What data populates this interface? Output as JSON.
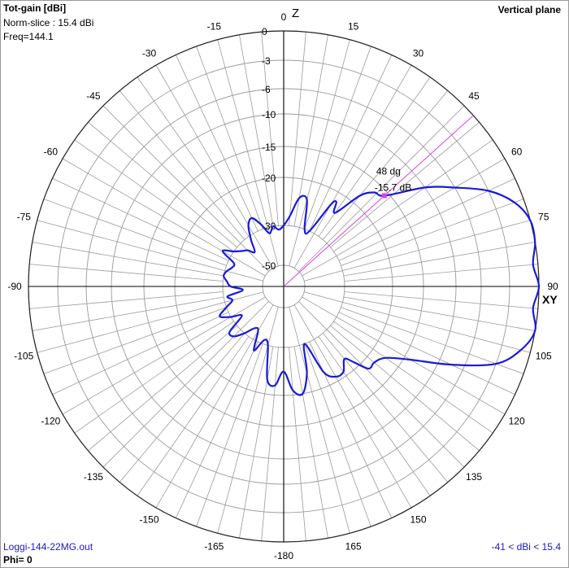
{
  "header": {
    "title": "Tot-gain [dBi]",
    "norm_slice": "Norm-slice : 15.4 dBi",
    "freq": "Freq=144.1",
    "plane": "Vertical plane"
  },
  "footer": {
    "filename": "Loggi-144-22MG.out",
    "phi": "Phi= 0",
    "range": "-41 < dBi < 15.4"
  },
  "axis_labels": {
    "z": "Z",
    "xy": "XY"
  },
  "colors": {
    "grid": "#9b9b9b",
    "axis": "#000000",
    "pattern": "#1a1ad8",
    "marker": "#e040e0"
  },
  "chart_data": {
    "type": "polar",
    "angle_unit": "deg",
    "angle_ticks": [
      "0",
      "15",
      "30",
      "45",
      "60",
      "75",
      "90",
      "105",
      "120",
      "135",
      "150",
      "165",
      "-180",
      "-165",
      "-150",
      "-135",
      "-120",
      "-105",
      "-90",
      "-75",
      "-60",
      "-45",
      "-30",
      "-15"
    ],
    "ring_labels": [
      "0",
      "-3",
      "-6",
      "-10",
      "-15",
      "-20",
      "-30",
      "-50"
    ],
    "marker": {
      "angle": 48,
      "angle_label": "48 dg",
      "value_label": "-15.7 dB",
      "value_db": -15.7
    },
    "series": [
      {
        "angle_deg": [
          0,
          5,
          10,
          15,
          20,
          25,
          30,
          32,
          35,
          40,
          44,
          48,
          55,
          60,
          65,
          70,
          75,
          80,
          85,
          90,
          95,
          100,
          105,
          110,
          115,
          120,
          125,
          130,
          134,
          137,
          140,
          145,
          150,
          155,
          160,
          165,
          170,
          175,
          180,
          185,
          190,
          195,
          200,
          205,
          210,
          215,
          220,
          225,
          230,
          235,
          240,
          245,
          250,
          255,
          260,
          265,
          270,
          275,
          280,
          285,
          290,
          295,
          300,
          305,
          310,
          315,
          320,
          325,
          330,
          335,
          340,
          345,
          350,
          355
        ],
        "rel_db": [
          -30,
          -28,
          -24,
          -24,
          -30,
          -30,
          -23,
          -22,
          -24,
          -18.5,
          -16.5,
          -15.7,
          -10,
          -6,
          -3,
          -1,
          0,
          0,
          -0.5,
          0,
          -0.5,
          0,
          -1,
          -3,
          -8,
          -14,
          -17.5,
          -18.5,
          -18.5,
          -21,
          -23,
          -21,
          -21,
          -23,
          -30,
          -24,
          -20,
          -21,
          -25,
          -22,
          -23,
          -30,
          -32,
          -28,
          -35,
          -35,
          -30,
          -28,
          -28,
          -35,
          -30,
          -28,
          -30,
          -34,
          -32,
          -40,
          -34,
          -32,
          -30,
          -31,
          -33,
          -33,
          -28,
          -30,
          -33,
          -35,
          -38,
          -32,
          -28,
          -27,
          -29,
          -33,
          -30,
          -32
        ]
      }
    ]
  }
}
